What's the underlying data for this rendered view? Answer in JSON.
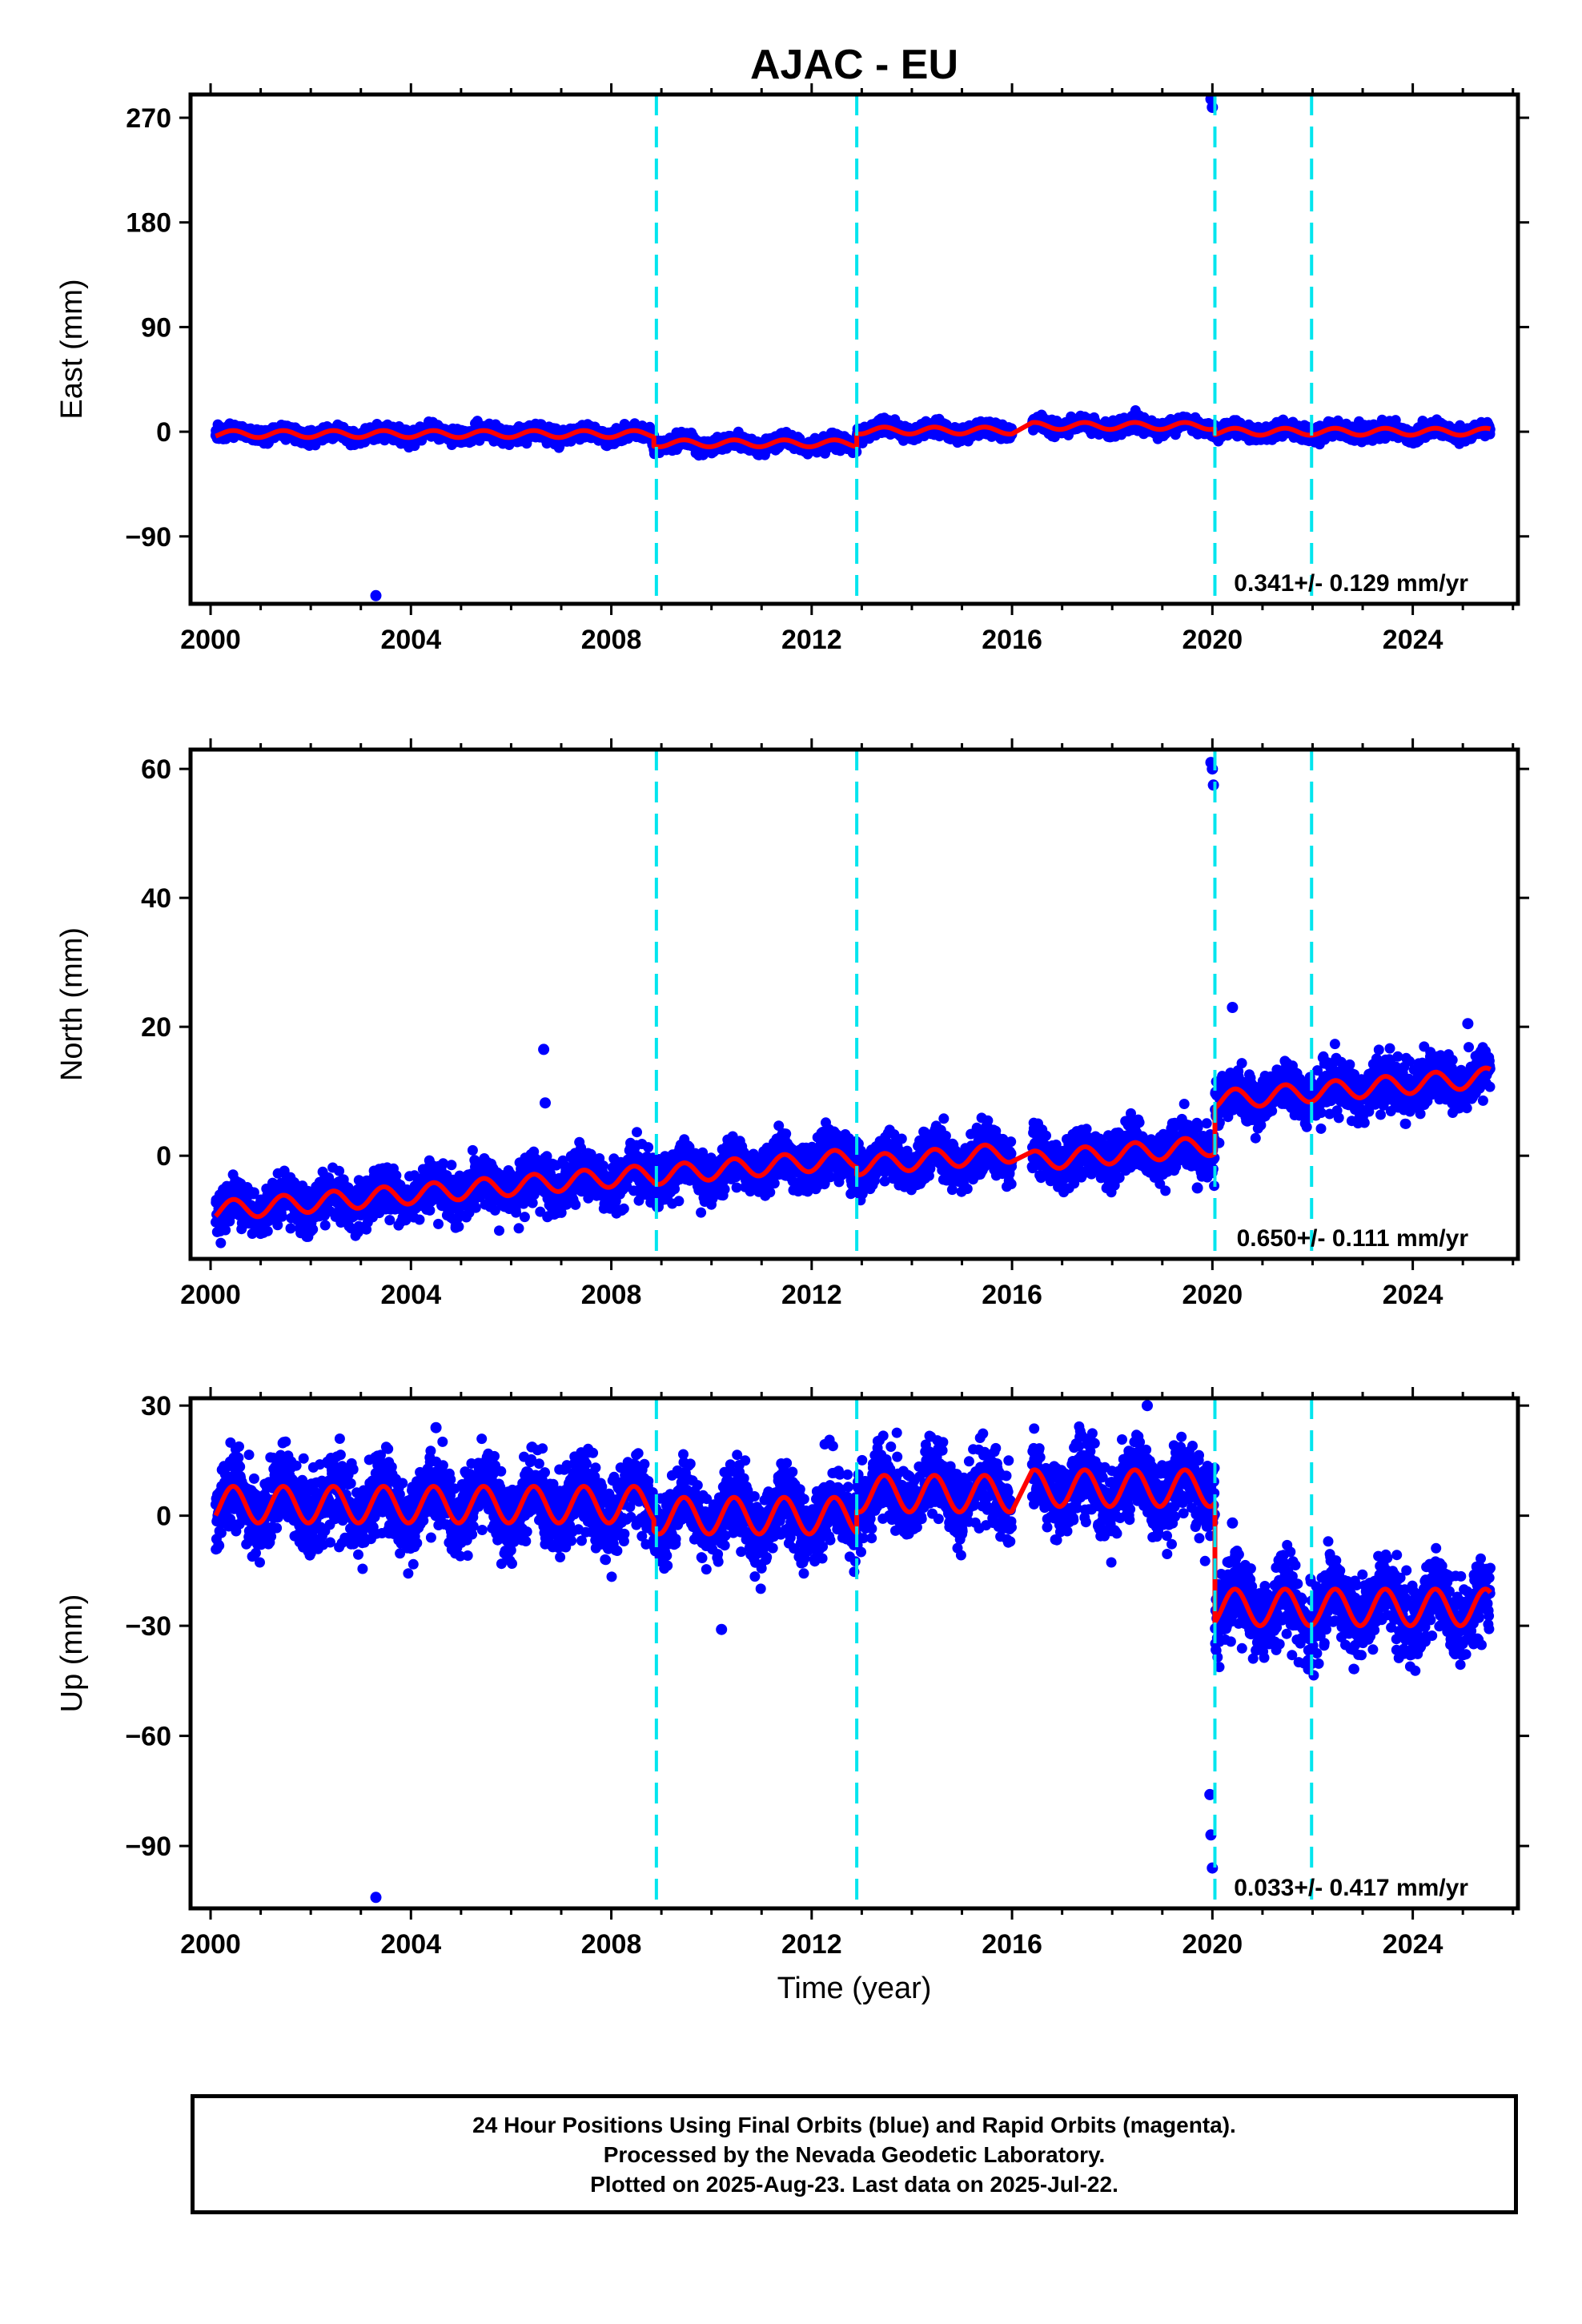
{
  "figure": {
    "title": "AJAC - EU"
  },
  "chart_data": [
    {
      "type": "scatter",
      "component": "East",
      "ylabel": "East (mm)",
      "xlabel": "",
      "xlim": [
        1999.6,
        2026.1
      ],
      "ylim": [
        -148,
        290
      ],
      "xticks": [
        2000,
        2004,
        2008,
        2012,
        2016,
        2020,
        2024
      ],
      "yticks": [
        -90,
        0,
        90,
        180,
        270
      ],
      "ytick_labels": [
        "−90",
        "0",
        "90",
        "180",
        "270"
      ],
      "rate_text": "0.341+/- 0.129 mm/yr",
      "segments": [
        {
          "t0": 2000.1,
          "t1": 2008.85,
          "offset": -2,
          "amp": 3,
          "scatter": 3
        },
        {
          "t0": 2008.85,
          "t1": 2012.9,
          "offset": -10,
          "amp": 3,
          "scatter": 3
        },
        {
          "t0": 2012.9,
          "t1": 2016.0,
          "offset": 1,
          "amp": 3,
          "scatter": 3
        },
        {
          "t0": 2016.4,
          "t1": 2020.05,
          "offset": 5,
          "amp": 3,
          "scatter": 3
        },
        {
          "t0": 2020.05,
          "t1": 2025.55,
          "offset": 0,
          "amp": 3,
          "scatter": 3
        }
      ],
      "outliers": [
        [
          2003.3,
          -141
        ],
        [
          2019.97,
          286
        ],
        [
          2020.0,
          279
        ]
      ],
      "breaks": [
        2008.9,
        2012.9,
        2020.05,
        2021.98
      ],
      "series": [
        {
          "label": "Final Orbits",
          "color": "#0000ff"
        },
        {
          "label": "Model",
          "color": "#ff0000"
        }
      ]
    },
    {
      "type": "scatter",
      "component": "North",
      "ylabel": "North (mm)",
      "xlabel": "",
      "xlim": [
        1999.6,
        2026.1
      ],
      "ylim": [
        -16,
        63
      ],
      "xticks": [
        2000,
        2004,
        2008,
        2012,
        2016,
        2020,
        2024
      ],
      "yticks": [
        0,
        20,
        40,
        60
      ],
      "ytick_labels": [
        "0",
        "20",
        "40",
        "60"
      ],
      "rate_text": "0.650+/- 0.111 mm/yr",
      "segments": [
        {
          "t0": 2000.1,
          "t1": 2008.0,
          "offset": -8.5,
          "slope": 0.65,
          "amp": 1.5,
          "scatter": 1.8
        },
        {
          "t0": 2008.0,
          "t1": 2008.85,
          "offset": -3.4,
          "slope": 0.65,
          "amp": 1.5,
          "scatter": 1.8
        },
        {
          "t0": 2008.85,
          "t1": 2012.9,
          "offset": -3.0,
          "slope": 0.65,
          "amp": 1.5,
          "scatter": 1.8
        },
        {
          "t0": 2012.9,
          "t1": 2016.0,
          "offset": -1.5,
          "slope": 0.65,
          "amp": 1.5,
          "scatter": 1.8
        },
        {
          "t0": 2016.4,
          "t1": 2020.05,
          "offset": -0.8,
          "slope": 0.65,
          "amp": 1.5,
          "scatter": 1.8
        },
        {
          "t0": 2020.05,
          "t1": 2025.55,
          "offset": 8.6,
          "slope": 0.65,
          "amp": 1.5,
          "scatter": 1.8
        }
      ],
      "outliers": [
        [
          2006.65,
          16.5
        ],
        [
          2006.68,
          8.2
        ],
        [
          2019.97,
          61
        ],
        [
          2020.0,
          60
        ],
        [
          2020.02,
          57.5
        ],
        [
          2020.4,
          23
        ],
        [
          2025.1,
          20.5
        ],
        [
          2019.7,
          -5
        ]
      ],
      "breaks": [
        2008.9,
        2012.9,
        2020.05,
        2021.98
      ],
      "series": [
        {
          "label": "Final Orbits",
          "color": "#0000ff"
        },
        {
          "label": "Model",
          "color": "#ff0000"
        }
      ]
    },
    {
      "type": "scatter",
      "component": "Up",
      "ylabel": "Up (mm)",
      "xlabel": "Time (year)",
      "xlim": [
        1999.6,
        2026.1
      ],
      "ylim": [
        -107,
        32
      ],
      "xticks": [
        2000,
        2004,
        2008,
        2012,
        2016,
        2020,
        2024
      ],
      "yticks": [
        -90,
        -60,
        -30,
        0,
        30
      ],
      "ytick_labels": [
        "−90",
        "−60",
        "−30",
        "0",
        "30"
      ],
      "rate_text": "0.033+/- 0.417 mm/yr",
      "segments": [
        {
          "t0": 2000.1,
          "t1": 2008.85,
          "offset": 3,
          "amp": 5,
          "scatter": 5
        },
        {
          "t0": 2008.85,
          "t1": 2012.9,
          "offset": 0,
          "amp": 5,
          "scatter": 5
        },
        {
          "t0": 2012.9,
          "t1": 2016.0,
          "offset": 6,
          "amp": 5,
          "scatter": 5
        },
        {
          "t0": 2016.4,
          "t1": 2020.05,
          "offset": 7.5,
          "amp": 5,
          "scatter": 5
        },
        {
          "t0": 2020.05,
          "t1": 2025.55,
          "offset": -25,
          "amp": 5,
          "scatter": 5
        }
      ],
      "outliers": [
        [
          2003.3,
          -104
        ],
        [
          2010.2,
          -31
        ],
        [
          2019.95,
          -76
        ],
        [
          2019.97,
          -87
        ],
        [
          2020.0,
          -96
        ],
        [
          2020.4,
          -2
        ],
        [
          2018.7,
          30
        ],
        [
          2004.5,
          24
        ]
      ],
      "breaks": [
        2008.9,
        2012.9,
        2020.05,
        2021.98
      ],
      "series": [
        {
          "label": "Final Orbits",
          "color": "#0000ff"
        },
        {
          "label": "Model",
          "color": "#ff0000"
        }
      ]
    }
  ],
  "colors": {
    "data_points": "#0000ff",
    "model_line": "#ff0000",
    "break_lines": "#00e5ee",
    "axes": "#000000"
  },
  "footer": {
    "line1": "24 Hour Positions Using Final Orbits (blue) and Rapid Orbits (magenta).",
    "line2": "Processed by the Nevada Geodetic Laboratory.",
    "line3": "Plotted on 2025-Aug-23. Last data on 2025-Jul-22."
  }
}
